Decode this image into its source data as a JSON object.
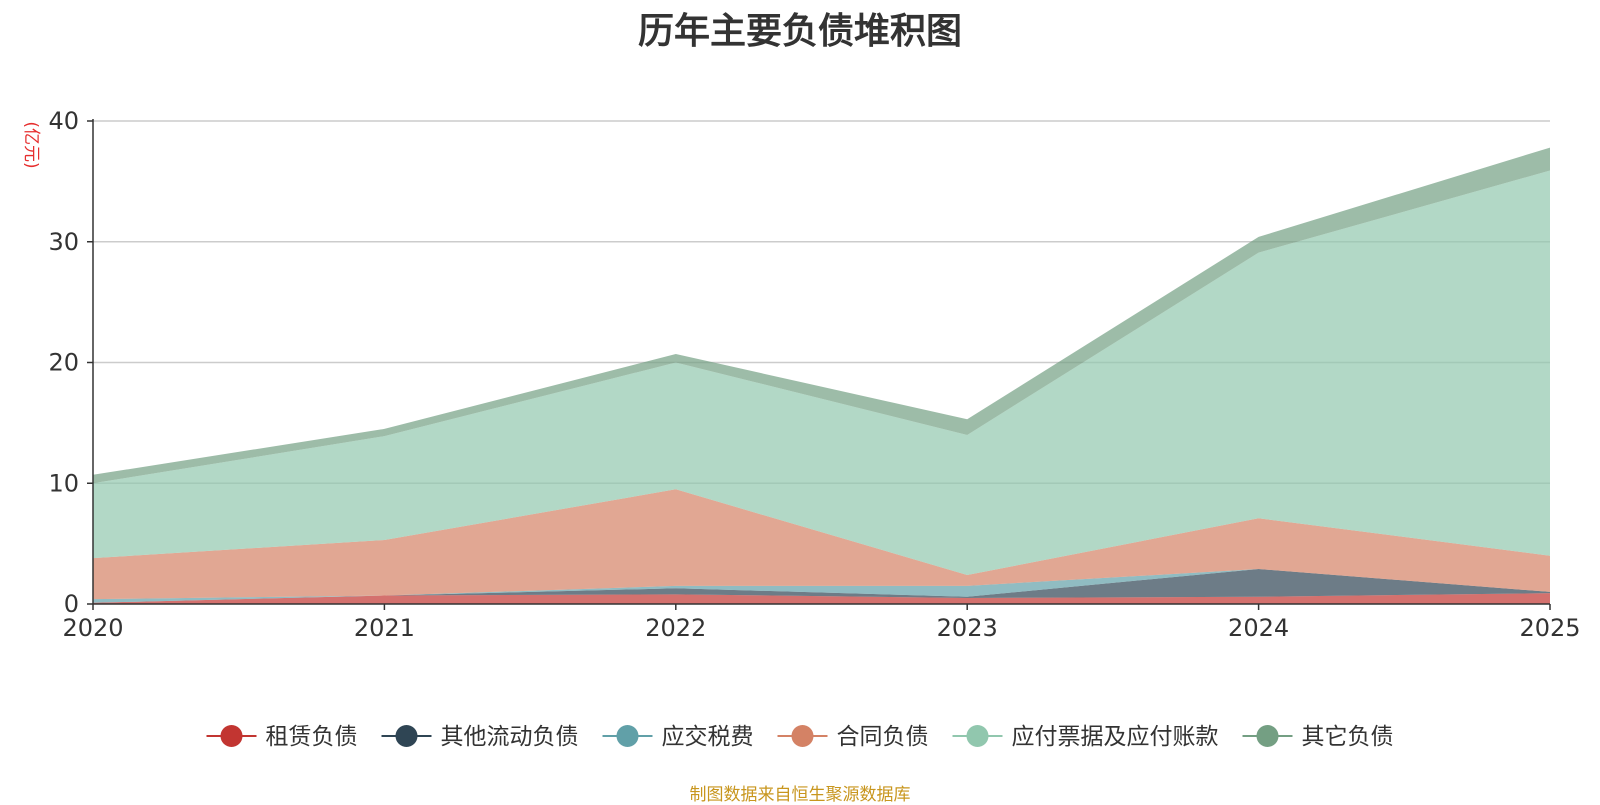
{
  "chart_data": {
    "type": "area",
    "stacked": true,
    "title": "历年主要负债堆积图",
    "ylabel": "(亿元)",
    "xlabel": "",
    "categories": [
      "2020",
      "2021",
      "2022",
      "2023",
      "2024",
      "2025"
    ],
    "ylim": [
      0,
      40
    ],
    "yticks": [
      0,
      10,
      20,
      30,
      40
    ],
    "grid": true,
    "legend_position": "bottom",
    "series": [
      {
        "name": "租赁负债",
        "color": "#c23531",
        "values": [
          0.1,
          0.7,
          0.8,
          0.5,
          0.6,
          0.9
        ]
      },
      {
        "name": "其他流动负债",
        "color": "#2f4554",
        "values": [
          0.0,
          0.0,
          0.5,
          0.1,
          2.3,
          0.1
        ]
      },
      {
        "name": "应交税费",
        "color": "#61a0a8",
        "values": [
          0.3,
          0.0,
          0.2,
          0.9,
          0.0,
          0.0
        ]
      },
      {
        "name": "合同负债",
        "color": "#d48265",
        "values": [
          3.4,
          4.6,
          8.0,
          0.9,
          4.2,
          3.0
        ]
      },
      {
        "name": "应付票据及应付账款",
        "color": "#91c7ae",
        "values": [
          6.2,
          8.6,
          10.5,
          11.6,
          22.0,
          31.9
        ]
      },
      {
        "name": "其它负债",
        "color": "#749f83",
        "values": [
          0.7,
          0.6,
          0.7,
          1.3,
          1.3,
          1.9
        ]
      }
    ]
  },
  "footer": {
    "source": "制图数据来自恒生聚源数据库"
  }
}
